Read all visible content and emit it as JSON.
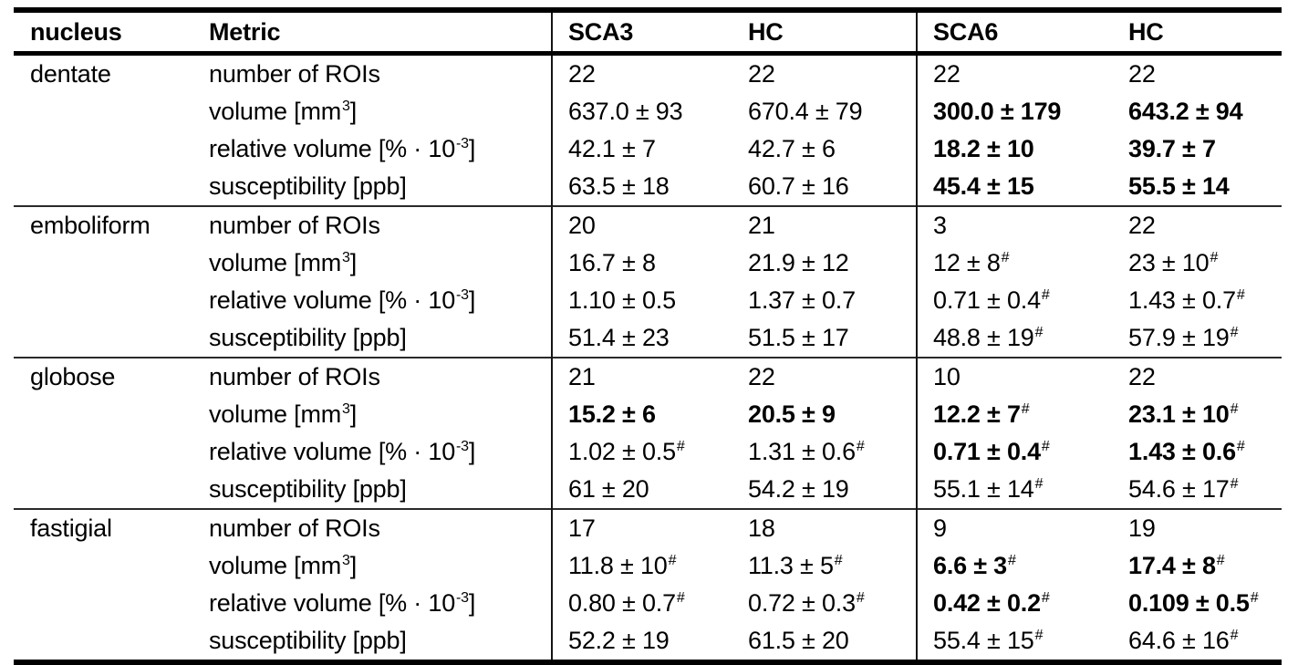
{
  "page": {
    "background": "#ffffff",
    "text_color": "#000000",
    "border_color": "#000000"
  },
  "table": {
    "headers": [
      {
        "key": "nucleus",
        "label": "nucleus"
      },
      {
        "key": "metric",
        "label": "Metric"
      },
      {
        "key": "sca3",
        "label": "SCA3"
      },
      {
        "key": "hc1",
        "label": "HC"
      },
      {
        "key": "sca6",
        "label": "SCA6"
      },
      {
        "key": "hc2",
        "label": "HC"
      }
    ],
    "groups": [
      {
        "nucleus": "dentate",
        "rows": [
          {
            "metric": "number of ROIs",
            "values": [
              {
                "v": "22"
              },
              {
                "v": "22"
              },
              {
                "v": "22"
              },
              {
                "v": "22"
              }
            ]
          },
          {
            "metric": "volume [mm^{3}]",
            "values": [
              {
                "v": "637.0 ± 93"
              },
              {
                "v": "670.4 ± 79"
              },
              {
                "v": "300.0 ± 179",
                "b": true
              },
              {
                "v": "643.2 ± 94",
                "b": true
              }
            ]
          },
          {
            "metric": "relative volume [% · 10^{-3}]",
            "values": [
              {
                "v": "42.1 ± 7"
              },
              {
                "v": "42.7 ± 6"
              },
              {
                "v": "18.2 ± 10",
                "b": true
              },
              {
                "v": "39.7 ± 7",
                "b": true
              }
            ]
          },
          {
            "metric": "susceptibility [ppb]",
            "values": [
              {
                "v": "63.5 ± 18"
              },
              {
                "v": "60.7 ± 16"
              },
              {
                "v": "45.4 ± 15",
                "b": true
              },
              {
                "v": "55.5 ± 14",
                "b": true
              }
            ]
          }
        ]
      },
      {
        "nucleus": "emboliform",
        "rows": [
          {
            "metric": "number of ROIs",
            "values": [
              {
                "v": "20"
              },
              {
                "v": "21"
              },
              {
                "v": "3"
              },
              {
                "v": "22"
              }
            ]
          },
          {
            "metric": "volume [mm^{3}]",
            "values": [
              {
                "v": "16.7 ± 8"
              },
              {
                "v": "21.9 ± 12"
              },
              {
                "v": "12 ± 8^{#}"
              },
              {
                "v": "23 ± 10^{#}"
              }
            ]
          },
          {
            "metric": "relative volume [% · 10^{-3}]",
            "values": [
              {
                "v": "1.10 ± 0.5"
              },
              {
                "v": "1.37 ± 0.7"
              },
              {
                "v": "0.71 ± 0.4^{#}"
              },
              {
                "v": "1.43 ± 0.7^{#}"
              }
            ]
          },
          {
            "metric": "susceptibility [ppb]",
            "values": [
              {
                "v": "51.4 ± 23"
              },
              {
                "v": "51.5 ± 17"
              },
              {
                "v": "48.8 ± 19^{#}"
              },
              {
                "v": "57.9 ± 19^{#}"
              }
            ]
          }
        ]
      },
      {
        "nucleus": "globose",
        "rows": [
          {
            "metric": "number of ROIs",
            "values": [
              {
                "v": "21"
              },
              {
                "v": "22"
              },
              {
                "v": "10"
              },
              {
                "v": "22"
              }
            ]
          },
          {
            "metric": "volume [mm^{3}]",
            "values": [
              {
                "v": "15.2 ± 6",
                "b": true
              },
              {
                "v": "20.5 ± 9",
                "b": true
              },
              {
                "v": "12.2 ± 7^{#}",
                "b": true
              },
              {
                "v": "23.1 ± 10^{#}",
                "b": true
              }
            ]
          },
          {
            "metric": "relative volume [% · 10^{-3}]",
            "values": [
              {
                "v": "1.02 ± 0.5^{#}"
              },
              {
                "v": "1.31 ± 0.6^{#}"
              },
              {
                "v": "0.71 ± 0.4^{#}",
                "b": true
              },
              {
                "v": "1.43 ± 0.6^{#}",
                "b": true
              }
            ]
          },
          {
            "metric": "susceptibility [ppb]",
            "values": [
              {
                "v": "61 ± 20"
              },
              {
                "v": "54.2 ± 19"
              },
              {
                "v": "55.1 ± 14^{#}"
              },
              {
                "v": "54.6 ± 17^{#}"
              }
            ]
          }
        ]
      },
      {
        "nucleus": "fastigial",
        "rows": [
          {
            "metric": "number of ROIs",
            "values": [
              {
                "v": "17"
              },
              {
                "v": "18"
              },
              {
                "v": "9"
              },
              {
                "v": "19"
              }
            ]
          },
          {
            "metric": "volume [mm^{3}]",
            "values": [
              {
                "v": "11.8 ± 10^{#}"
              },
              {
                "v": "11.3 ± 5^{#}"
              },
              {
                "v": "6.6 ± 3^{#}",
                "b": true
              },
              {
                "v": "17.4 ± 8^{#}",
                "b": true
              }
            ]
          },
          {
            "metric": "relative volume [% · 10^{-3}]",
            "values": [
              {
                "v": "0.80 ± 0.7^{#}"
              },
              {
                "v": "0.72 ± 0.3^{#}"
              },
              {
                "v": "0.42 ± 0.2^{#}",
                "b": true
              },
              {
                "v": "0.109 ± 0.5^{#}",
                "b": true
              }
            ]
          },
          {
            "metric": "susceptibility [ppb]",
            "values": [
              {
                "v": "52.2 ± 19"
              },
              {
                "v": "61.5 ± 20"
              },
              {
                "v": "55.4 ± 15^{#}"
              },
              {
                "v": "64.6 ± 16^{#}"
              }
            ]
          }
        ]
      }
    ]
  }
}
